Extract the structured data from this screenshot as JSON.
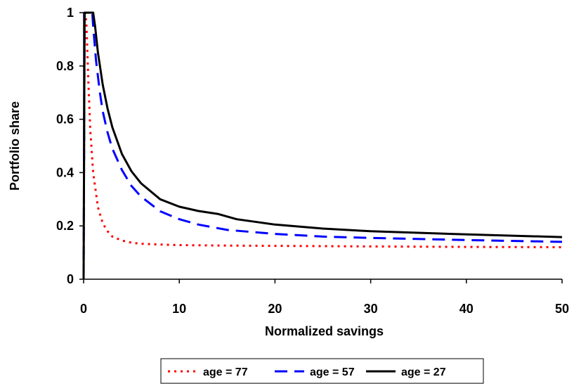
{
  "chart_data": {
    "type": "line",
    "title": "",
    "xlabel": "Normalized savings",
    "ylabel": "Portfolio share",
    "xlim": [
      0,
      50
    ],
    "ylim": [
      0,
      1
    ],
    "x_ticks": [
      "0",
      "10",
      "20",
      "30",
      "40",
      "50"
    ],
    "y_ticks": [
      "0",
      "0.2",
      "0.4",
      "0.6",
      "0.8",
      "1"
    ],
    "grid": false,
    "legend_position": "bottom",
    "series": [
      {
        "name": "age = 77",
        "color": "#ff0000",
        "line_style": "dotted",
        "x": [
          0,
          0.1,
          0.2,
          0.3,
          0.5,
          0.7,
          1,
          1.5,
          2,
          2.5,
          3,
          4,
          5,
          6,
          8,
          10,
          15,
          20,
          30,
          40,
          50
        ],
        "y": [
          0,
          0.98,
          1.0,
          0.95,
          0.74,
          0.56,
          0.4,
          0.27,
          0.21,
          0.18,
          0.16,
          0.145,
          0.137,
          0.133,
          0.13,
          0.128,
          0.126,
          0.125,
          0.123,
          0.121,
          0.12
        ]
      },
      {
        "name": "age = 57",
        "color": "#0000ff",
        "line_style": "dashed",
        "x": [
          0,
          0.05,
          0.1,
          0.3,
          0.5,
          0.7,
          0.9,
          1,
          1.3,
          1.7,
          2,
          2.5,
          3,
          4,
          5,
          6,
          8,
          10,
          12,
          15,
          20,
          25,
          30,
          40,
          50
        ],
        "y": [
          0,
          0.5,
          1.0,
          1.0,
          1.0,
          1.0,
          1.0,
          0.95,
          0.82,
          0.7,
          0.63,
          0.55,
          0.49,
          0.41,
          0.35,
          0.31,
          0.255,
          0.225,
          0.205,
          0.185,
          0.17,
          0.16,
          0.155,
          0.147,
          0.14
        ]
      },
      {
        "name": "age = 27",
        "color": "#000000",
        "line_style": "solid",
        "x": [
          0,
          0.05,
          0.1,
          0.5,
          1,
          1.2,
          1.5,
          2,
          2.5,
          3,
          4,
          5,
          6,
          8,
          10,
          12,
          14,
          16,
          20,
          25,
          30,
          40,
          50
        ],
        "y": [
          0,
          0.5,
          1.0,
          1.0,
          1.0,
          0.95,
          0.85,
          0.73,
          0.64,
          0.57,
          0.47,
          0.405,
          0.36,
          0.3,
          0.272,
          0.256,
          0.245,
          0.225,
          0.205,
          0.19,
          0.18,
          0.168,
          0.158
        ]
      }
    ]
  }
}
